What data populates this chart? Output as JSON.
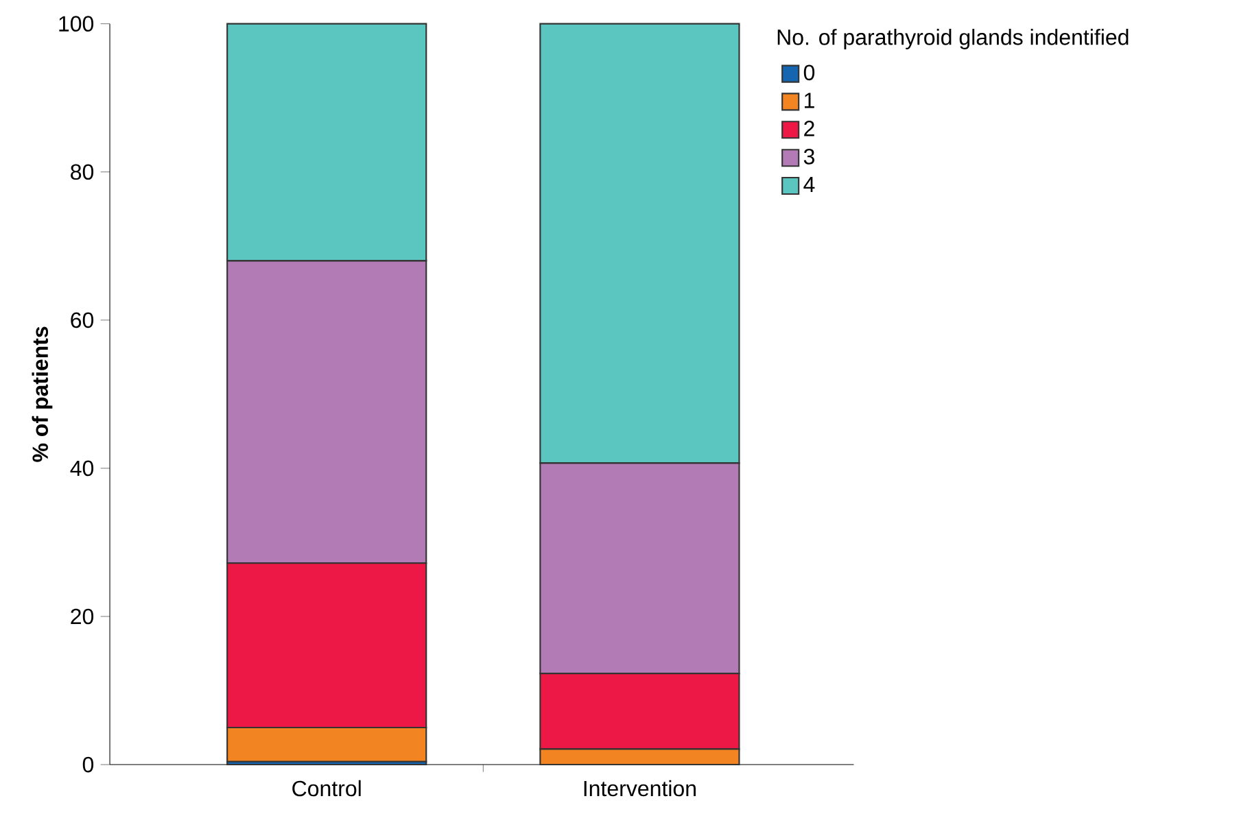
{
  "chart_data": {
    "type": "bar",
    "stacked": true,
    "ylabel": "% of patients",
    "legend_title": "No. of parathyroid glands indentified",
    "legend": "top right",
    "categories": [
      "Control",
      "Intervention"
    ],
    "ylim": [
      0,
      100
    ],
    "yticks": [
      0,
      20,
      40,
      60,
      80,
      100
    ],
    "series": [
      {
        "name": "0",
        "color": "#1565b0",
        "values": [
          0.4,
          0
        ]
      },
      {
        "name": "1",
        "color": "#f28522",
        "values": [
          4.6,
          2.1
        ]
      },
      {
        "name": "2",
        "color": "#ee1846",
        "values": [
          22.2,
          10.2
        ]
      },
      {
        "name": "3",
        "color": "#b37bb5",
        "values": [
          40.8,
          28.4
        ]
      },
      {
        "name": "4",
        "color": "#5bc5bf",
        "values": [
          32.0,
          59.3
        ]
      }
    ]
  }
}
